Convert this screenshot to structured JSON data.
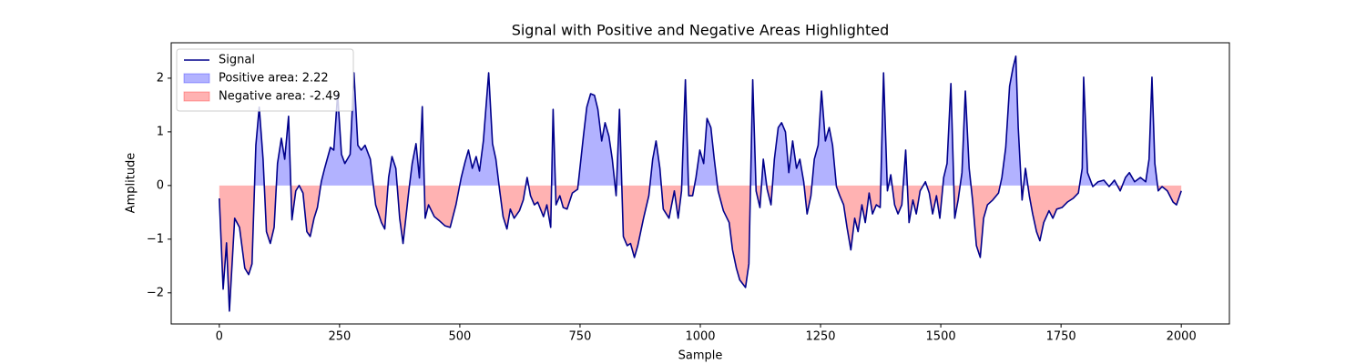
{
  "chart_data": {
    "type": "line",
    "title": "Signal with Positive and Negative Areas Highlighted",
    "xlabel": "Sample",
    "ylabel": "Amplitude",
    "xlim": [
      -100,
      2100
    ],
    "ylim": [
      -2.58,
      2.66
    ],
    "xticks": [
      0,
      250,
      500,
      750,
      1000,
      1250,
      1500,
      1750,
      2000
    ],
    "yticks": [
      {
        "value": -2,
        "label": "−2"
      },
      {
        "value": -1,
        "label": "−1"
      },
      0,
      1,
      2
    ],
    "grid": false,
    "legend": "upper left",
    "x": [
      0,
      8,
      15,
      21,
      32,
      42,
      53,
      61,
      68,
      76,
      83,
      91,
      98,
      106,
      114,
      121,
      129,
      136,
      144,
      151,
      159,
      166,
      174,
      182,
      189,
      197,
      204,
      212,
      219,
      231,
      238,
      246,
      254,
      261,
      272,
      280,
      288,
      295,
      303,
      314,
      325,
      337,
      344,
      352,
      359,
      367,
      375,
      382,
      394,
      401,
      409,
      416,
      422,
      428,
      435,
      447,
      458,
      469,
      480,
      492,
      503,
      511,
      518,
      526,
      534,
      541,
      549,
      560,
      568,
      575,
      583,
      590,
      598,
      605,
      613,
      624,
      632,
      640,
      647,
      655,
      662,
      674,
      681,
      689,
      694,
      700,
      708,
      715,
      723,
      734,
      745,
      757,
      764,
      772,
      780,
      787,
      795,
      802,
      810,
      817,
      825,
      832,
      840,
      848,
      855,
      863,
      870,
      882,
      893,
      901,
      908,
      916,
      923,
      935,
      946,
      954,
      961,
      969,
      976,
      984,
      991,
      999,
      1007,
      1014,
      1022,
      1029,
      1037,
      1048,
      1060,
      1067,
      1075,
      1082,
      1094,
      1101,
      1109,
      1116,
      1124,
      1131,
      1139,
      1147,
      1154,
      1162,
      1169,
      1177,
      1184,
      1192,
      1200,
      1207,
      1215,
      1222,
      1230,
      1237,
      1245,
      1252,
      1260,
      1268,
      1275,
      1283,
      1290,
      1298,
      1305,
      1313,
      1321,
      1328,
      1336,
      1343,
      1351,
      1358,
      1366,
      1374,
      1381,
      1389,
      1396,
      1404,
      1411,
      1419,
      1427,
      1434,
      1442,
      1449,
      1457,
      1468,
      1476,
      1483,
      1491,
      1498,
      1506,
      1513,
      1521,
      1529,
      1536,
      1544,
      1551,
      1559,
      1566,
      1574,
      1582,
      1589,
      1597,
      1608,
      1620,
      1627,
      1635,
      1643,
      1650,
      1656,
      1661,
      1669,
      1676,
      1684,
      1691,
      1699,
      1706,
      1714,
      1725,
      1733,
      1741,
      1752,
      1763,
      1775,
      1786,
      1794,
      1797,
      1805,
      1816,
      1827,
      1839,
      1850,
      1861,
      1873,
      1884,
      1892,
      1903,
      1915,
      1926,
      1933,
      1939,
      1945,
      1952,
      1960,
      1971,
      1983,
      1990,
      2000
    ],
    "series": [
      {
        "name": "Signal",
        "color": "#00008b",
        "values": [
          -0.24,
          -1.93,
          -1.07,
          -2.34,
          -0.61,
          -0.78,
          -1.54,
          -1.66,
          -1.46,
          0.75,
          1.46,
          0.49,
          -0.86,
          -1.08,
          -0.78,
          0.41,
          0.88,
          0.49,
          1.29,
          -0.64,
          -0.1,
          0,
          -0.14,
          -0.86,
          -0.95,
          -0.61,
          -0.41,
          0.07,
          0.32,
          0.71,
          0.66,
          1.71,
          0.58,
          0.41,
          0.58,
          2.1,
          0.75,
          0.66,
          0.75,
          0.49,
          -0.36,
          -0.69,
          -0.81,
          0.15,
          0.54,
          0.32,
          -0.61,
          -1.08,
          -0.1,
          0.41,
          0.78,
          0.14,
          1.47,
          -0.61,
          -0.36,
          -0.58,
          -0.66,
          -0.75,
          -0.78,
          -0.36,
          0.15,
          0.44,
          0.66,
          0.32,
          0.54,
          0.27,
          0.83,
          2.1,
          0.78,
          0.49,
          -0.1,
          -0.58,
          -0.81,
          -0.44,
          -0.61,
          -0.47,
          -0.27,
          0.15,
          -0.19,
          -0.36,
          -0.31,
          -0.58,
          -0.36,
          -0.78,
          1.42,
          -0.36,
          -0.19,
          -0.41,
          -0.44,
          -0.14,
          -0.07,
          0.92,
          1.46,
          1.71,
          1.68,
          1.42,
          0.83,
          1.17,
          0.92,
          0.49,
          -0.19,
          1.42,
          -0.95,
          -1.12,
          -1.08,
          -1.34,
          -1.12,
          -0.61,
          -0.19,
          0.49,
          0.83,
          0.32,
          -0.44,
          -0.61,
          -0.1,
          -0.61,
          -0.1,
          1.97,
          -0.19,
          -0.19,
          0.15,
          0.66,
          0.41,
          1.25,
          1.08,
          0.49,
          -0.1,
          -0.47,
          -0.69,
          -1.2,
          -1.54,
          -1.76,
          -1.9,
          -1.46,
          1.97,
          -0.1,
          -0.41,
          0.49,
          -0.07,
          -0.36,
          0.49,
          1.08,
          1.17,
          1.0,
          0.24,
          0.83,
          0.32,
          0.49,
          0.07,
          -0.53,
          -0.19,
          0.49,
          0.75,
          1.76,
          0.83,
          1.08,
          0.75,
          -0.02,
          -0.19,
          -0.36,
          -0.78,
          -1.2,
          -0.61,
          -0.86,
          -0.36,
          -0.69,
          -0.14,
          -0.53,
          -0.36,
          -0.41,
          2.1,
          -0.1,
          0.2,
          -0.36,
          -0.53,
          -0.36,
          0.66,
          -0.69,
          -0.27,
          -0.53,
          -0.1,
          0.07,
          -0.14,
          -0.53,
          -0.19,
          -0.61,
          0.15,
          0.41,
          1.9,
          -0.61,
          -0.27,
          0.24,
          1.76,
          0.32,
          -0.27,
          -1.12,
          -1.34,
          -0.61,
          -0.36,
          -0.27,
          -0.14,
          0.15,
          0.71,
          1.85,
          2.19,
          2.41,
          1.08,
          -0.27,
          0.32,
          -0.19,
          -0.53,
          -0.86,
          -1.03,
          -0.69,
          -0.47,
          -0.61,
          -0.44,
          -0.41,
          -0.31,
          -0.24,
          -0.14,
          0.32,
          2.02,
          0.24,
          -0.02,
          0.07,
          0.1,
          -0.02,
          0.1,
          -0.1,
          0.15,
          0.24,
          0.07,
          0.15,
          0.07,
          0.49,
          2.02,
          0.41,
          -0.1,
          -0.02,
          -0.1,
          -0.31,
          -0.36,
          -0.1
        ]
      }
    ],
    "areas": [
      {
        "name": "Positive area: 2.22",
        "color": "#0000ff",
        "side": "positive"
      },
      {
        "name": "Negative area: -2.49",
        "color": "#ff0000",
        "side": "negative"
      }
    ]
  }
}
